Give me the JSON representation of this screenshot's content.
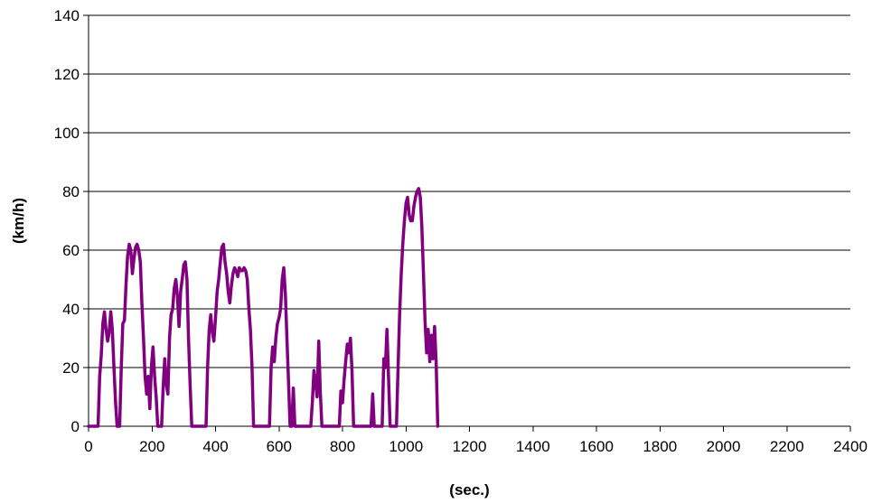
{
  "chart_data": {
    "type": "line",
    "title": "",
    "xlabel": "(sec.)",
    "ylabel": "(km/h)",
    "xlim": [
      0,
      2400
    ],
    "ylim": [
      0,
      140
    ],
    "x_ticks": [
      "0",
      "200",
      "400",
      "600",
      "800",
      "1000",
      "1200",
      "1400",
      "1600",
      "1800",
      "2000",
      "2200",
      "2400"
    ],
    "y_ticks": [
      "0",
      "20",
      "40",
      "60",
      "80",
      "100",
      "120",
      "140"
    ],
    "grid": "horizontal",
    "legend": "none",
    "series": [
      {
        "color": "#800080",
        "points": [
          [
            0,
            0
          ],
          [
            30,
            0
          ],
          [
            35,
            17
          ],
          [
            40,
            24
          ],
          [
            45,
            35
          ],
          [
            50,
            39
          ],
          [
            55,
            33
          ],
          [
            60,
            29
          ],
          [
            65,
            32
          ],
          [
            70,
            39
          ],
          [
            75,
            33
          ],
          [
            80,
            20
          ],
          [
            85,
            8
          ],
          [
            90,
            0
          ],
          [
            98,
            0
          ],
          [
            103,
            20
          ],
          [
            108,
            35
          ],
          [
            113,
            36
          ],
          [
            118,
            48
          ],
          [
            123,
            58
          ],
          [
            128,
            62
          ],
          [
            133,
            60
          ],
          [
            138,
            52
          ],
          [
            143,
            57
          ],
          [
            148,
            61
          ],
          [
            153,
            62
          ],
          [
            158,
            60
          ],
          [
            163,
            56
          ],
          [
            168,
            42
          ],
          [
            173,
            30
          ],
          [
            178,
            17
          ],
          [
            183,
            11
          ],
          [
            188,
            17
          ],
          [
            193,
            6
          ],
          [
            198,
            20
          ],
          [
            203,
            27
          ],
          [
            208,
            17
          ],
          [
            213,
            10
          ],
          [
            218,
            0
          ],
          [
            230,
            0
          ],
          [
            235,
            13
          ],
          [
            240,
            23
          ],
          [
            245,
            14
          ],
          [
            250,
            11
          ],
          [
            255,
            30
          ],
          [
            260,
            38
          ],
          [
            265,
            40
          ],
          [
            270,
            47
          ],
          [
            275,
            50
          ],
          [
            280,
            44
          ],
          [
            285,
            34
          ],
          [
            290,
            46
          ],
          [
            295,
            50
          ],
          [
            300,
            55
          ],
          [
            305,
            56
          ],
          [
            310,
            50
          ],
          [
            315,
            30
          ],
          [
            320,
            14
          ],
          [
            325,
            0
          ],
          [
            370,
            0
          ],
          [
            375,
            20
          ],
          [
            380,
            33
          ],
          [
            385,
            38
          ],
          [
            390,
            32
          ],
          [
            395,
            29
          ],
          [
            400,
            37
          ],
          [
            405,
            46
          ],
          [
            410,
            50
          ],
          [
            415,
            56
          ],
          [
            420,
            61
          ],
          [
            425,
            62
          ],
          [
            430,
            56
          ],
          [
            435,
            52
          ],
          [
            440,
            46
          ],
          [
            445,
            42
          ],
          [
            450,
            48
          ],
          [
            455,
            52
          ],
          [
            460,
            54
          ],
          [
            465,
            53
          ],
          [
            470,
            51
          ],
          [
            475,
            54
          ],
          [
            480,
            53
          ],
          [
            485,
            53
          ],
          [
            490,
            54
          ],
          [
            495,
            53
          ],
          [
            500,
            50
          ],
          [
            505,
            40
          ],
          [
            510,
            33
          ],
          [
            515,
            20
          ],
          [
            520,
            0
          ],
          [
            570,
            0
          ],
          [
            575,
            20
          ],
          [
            580,
            27
          ],
          [
            585,
            22
          ],
          [
            590,
            30
          ],
          [
            595,
            35
          ],
          [
            600,
            37
          ],
          [
            605,
            40
          ],
          [
            610,
            50
          ],
          [
            615,
            54
          ],
          [
            620,
            45
          ],
          [
            625,
            30
          ],
          [
            630,
            15
          ],
          [
            635,
            0
          ],
          [
            640,
            0
          ],
          [
            645,
            13
          ],
          [
            650,
            0
          ],
          [
            700,
            0
          ],
          [
            705,
            8
          ],
          [
            710,
            19
          ],
          [
            715,
            15
          ],
          [
            720,
            10
          ],
          [
            725,
            29
          ],
          [
            730,
            12
          ],
          [
            735,
            0
          ],
          [
            790,
            0
          ],
          [
            795,
            12
          ],
          [
            800,
            8
          ],
          [
            805,
            16
          ],
          [
            810,
            22
          ],
          [
            815,
            28
          ],
          [
            820,
            25
          ],
          [
            825,
            30
          ],
          [
            830,
            19
          ],
          [
            835,
            0
          ],
          [
            890,
            0
          ],
          [
            895,
            11
          ],
          [
            900,
            0
          ],
          [
            925,
            0
          ],
          [
            930,
            23
          ],
          [
            935,
            20
          ],
          [
            940,
            33
          ],
          [
            945,
            17
          ],
          [
            950,
            0
          ],
          [
            970,
            0
          ],
          [
            975,
            20
          ],
          [
            980,
            38
          ],
          [
            985,
            52
          ],
          [
            990,
            62
          ],
          [
            995,
            70
          ],
          [
            1000,
            76
          ],
          [
            1005,
            78
          ],
          [
            1010,
            72
          ],
          [
            1015,
            70
          ],
          [
            1020,
            70
          ],
          [
            1025,
            75
          ],
          [
            1030,
            78
          ],
          [
            1035,
            80
          ],
          [
            1040,
            81
          ],
          [
            1045,
            78
          ],
          [
            1050,
            68
          ],
          [
            1055,
            52
          ],
          [
            1060,
            36
          ],
          [
            1065,
            25
          ],
          [
            1070,
            33
          ],
          [
            1075,
            22
          ],
          [
            1080,
            31
          ],
          [
            1085,
            23
          ],
          [
            1090,
            34
          ],
          [
            1095,
            22
          ],
          [
            1100,
            0
          ]
        ]
      }
    ]
  }
}
